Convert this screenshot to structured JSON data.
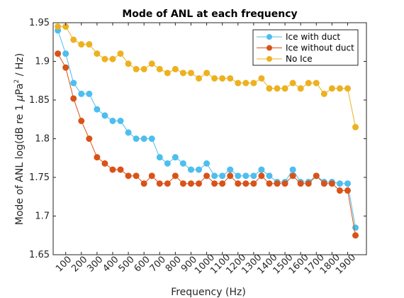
{
  "chart_data": {
    "type": "line",
    "title": "Mode of ANL at each frequency",
    "xlabel": "Frequency (Hz)",
    "ylabel_prefix": "Mode of ANL log(dB re 1 ",
    "ylabel_mu": "μ",
    "ylabel_pa": "Pa",
    "ylabel_sup": "2",
    "ylabel_suffix": " / Hz)",
    "xlim": [
      20,
      2020
    ],
    "ylim": [
      1.65,
      1.95
    ],
    "grid": false,
    "legend_position": "top-right",
    "x_ticks": [
      100,
      200,
      300,
      400,
      500,
      600,
      700,
      800,
      900,
      1000,
      1100,
      1200,
      1300,
      1400,
      1500,
      1600,
      1700,
      1800,
      1900
    ],
    "y_ticks": [
      1.65,
      1.7,
      1.75,
      1.8,
      1.85,
      1.9,
      1.95
    ],
    "x": [
      50,
      100,
      150,
      200,
      250,
      300,
      350,
      400,
      450,
      500,
      550,
      600,
      650,
      700,
      750,
      800,
      850,
      900,
      950,
      1000,
      1050,
      1100,
      1150,
      1200,
      1250,
      1300,
      1350,
      1400,
      1450,
      1500,
      1550,
      1600,
      1650,
      1700,
      1750,
      1800,
      1850,
      1900,
      1950
    ],
    "series": [
      {
        "name": "Ice with duct",
        "color": "#4DBEEE",
        "values": [
          1.94,
          1.91,
          1.872,
          1.858,
          1.858,
          1.838,
          1.83,
          1.823,
          1.823,
          1.808,
          1.8,
          1.8,
          1.8,
          1.776,
          1.768,
          1.776,
          1.768,
          1.76,
          1.76,
          1.768,
          1.752,
          1.752,
          1.76,
          1.752,
          1.752,
          1.752,
          1.76,
          1.752,
          1.744,
          1.744,
          1.76,
          1.744,
          1.744,
          1.752,
          1.744,
          1.744,
          1.742,
          1.742,
          1.685
        ]
      },
      {
        "name": "Ice without duct",
        "color": "#D95319",
        "values": [
          1.91,
          1.892,
          1.852,
          1.823,
          1.8,
          1.776,
          1.768,
          1.76,
          1.76,
          1.752,
          1.752,
          1.742,
          1.752,
          1.742,
          1.742,
          1.752,
          1.742,
          1.742,
          1.742,
          1.752,
          1.742,
          1.742,
          1.752,
          1.742,
          1.742,
          1.742,
          1.752,
          1.742,
          1.742,
          1.742,
          1.752,
          1.742,
          1.742,
          1.752,
          1.742,
          1.742,
          1.733,
          1.733,
          1.675
        ]
      },
      {
        "name": "No Ice",
        "color": "#EDB120",
        "values": [
          1.945,
          1.945,
          1.928,
          1.922,
          1.922,
          1.91,
          1.903,
          1.903,
          1.91,
          1.897,
          1.89,
          1.89,
          1.897,
          1.89,
          1.885,
          1.89,
          1.885,
          1.885,
          1.878,
          1.885,
          1.878,
          1.878,
          1.878,
          1.872,
          1.872,
          1.872,
          1.878,
          1.865,
          1.865,
          1.865,
          1.872,
          1.865,
          1.872,
          1.872,
          1.858,
          1.865,
          1.865,
          1.865,
          1.815
        ]
      }
    ]
  }
}
